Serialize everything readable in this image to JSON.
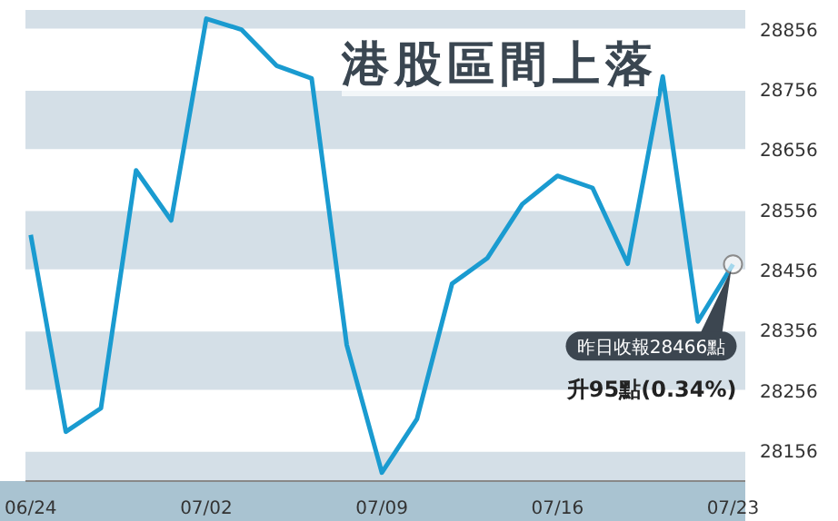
{
  "chart_data": {
    "type": "line",
    "title": "港股區間上落",
    "categories": [
      "06/24",
      null,
      null,
      null,
      null,
      "07/02",
      null,
      null,
      null,
      null,
      "07/09",
      null,
      null,
      null,
      null,
      "07/16",
      null,
      null,
      null,
      null,
      "07/23"
    ],
    "series": [
      {
        "color": "#1a9bd0",
        "values": [
          28515,
          28188,
          28227,
          28622,
          28539,
          28874,
          28856,
          28796,
          28775,
          28332,
          28120,
          28209,
          28434,
          28476,
          28566,
          28613,
          28593,
          28467,
          28778,
          28371,
          28466
        ]
      }
    ],
    "ylim": [
      28106,
      28890
    ],
    "yticks": [
      28156,
      28256,
      28356,
      28456,
      28556,
      28656,
      28756,
      28856
    ],
    "grid": "y",
    "marker": "none",
    "line_style": "solid",
    "annotations": [
      {
        "text": "昨日收報28466點",
        "x": "07/23",
        "y": 28466
      },
      "升95點(0.34%)"
    ]
  }
}
